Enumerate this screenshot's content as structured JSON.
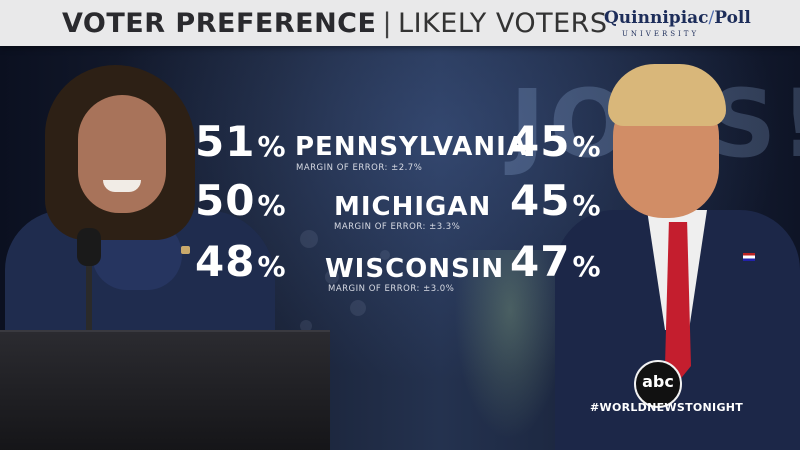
{
  "header": {
    "title": "VOTER PREFERENCE",
    "divider": "|",
    "subtitle": "LIKELY VOTERS"
  },
  "logo": {
    "name_left": "Quinnipiac",
    "separator": "/",
    "name_right": "Poll",
    "university": "UNIVERSITY"
  },
  "background_word": "JOBS!",
  "rows": [
    {
      "state": "PENNSYLVANIA",
      "left_pct": "51",
      "right_pct": "45",
      "margin": "MARGIN OF ERROR: ±2.7%"
    },
    {
      "state": "MICHIGAN",
      "left_pct": "50",
      "right_pct": "45",
      "margin": "MARGIN OF ERROR: ±3.3%"
    },
    {
      "state": "WISCONSIN",
      "left_pct": "48",
      "right_pct": "47",
      "margin": "MARGIN OF ERROR: ±3.0%"
    }
  ],
  "percent_symbol": "%",
  "branding": {
    "network": "abc",
    "hashtag": "#WORLDNEWSTONIGHT"
  },
  "colors": {
    "header_bg": "#e9e9ea",
    "header_text": "#2a2a2e",
    "logo_navy": "#1d2d5a",
    "text_white": "#ffffff",
    "tie_red": "#c41e2e"
  }
}
